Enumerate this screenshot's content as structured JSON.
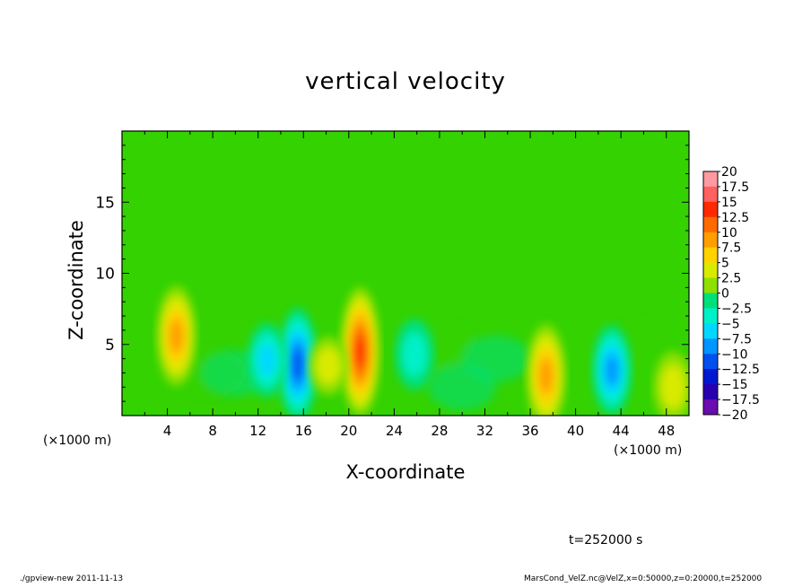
{
  "chart_data": {
    "type": "heatmap",
    "title": "vertical velocity",
    "xlabel": "X-coordinate",
    "ylabel": "Z-coordinate",
    "x_unit": "(×1000 m)",
    "y_unit": "(×1000 m)",
    "xlim": [
      0,
      50
    ],
    "ylim": [
      0,
      20
    ],
    "x_ticks": [
      4,
      8,
      12,
      16,
      20,
      24,
      28,
      32,
      36,
      40,
      44,
      48
    ],
    "y_ticks": [
      5,
      10,
      15
    ],
    "colorbar": {
      "levels": [
        20,
        17.5,
        15,
        12.5,
        10,
        7.5,
        5,
        2.5,
        0,
        -2.5,
        -5,
        -7.5,
        -10,
        -12.5,
        -15,
        -17.5,
        -20
      ],
      "level_labels": [
        "20",
        "17.5",
        "15",
        "12.5",
        "10",
        "7.5",
        "5",
        "2.5",
        "0",
        "−2.5",
        "−5",
        "−7.5",
        "−10",
        "−12.5",
        "−15",
        "−17.5",
        "−20"
      ],
      "colors": [
        "#ff9aa0",
        "#ff6060",
        "#ff2a00",
        "#ff6a00",
        "#ff9e00",
        "#ffd200",
        "#d9ea00",
        "#8ee000",
        "#33d200",
        "#00e07a",
        "#00f0c8",
        "#00d8ff",
        "#0096ff",
        "#0050f0",
        "#0018d0",
        "#2800b0",
        "#6a0cb0"
      ]
    },
    "features": [
      {
        "x": 4.8,
        "z": 5.6,
        "value": 10.5
      },
      {
        "x": 15.5,
        "z": 3.6,
        "value": -12.5
      },
      {
        "x": 12.8,
        "z": 3.9,
        "value": -6.5
      },
      {
        "x": 21.0,
        "z": 4.5,
        "value": 15
      },
      {
        "x": 25.8,
        "z": 4.3,
        "value": -6
      },
      {
        "x": 37.4,
        "z": 2.8,
        "value": 11
      },
      {
        "x": 43.2,
        "z": 3.2,
        "value": -9
      },
      {
        "x": 48.6,
        "z": 2.0,
        "value": 6
      },
      {
        "x": 18.2,
        "z": 3.5,
        "value": 4
      }
    ]
  },
  "time_label": "t=252000 s",
  "footer_left": "./gpview-new   2011-11-13",
  "footer_right": "MarsCond_VelZ.nc@VelZ,x=0:50000,z=0:20000,t=252000"
}
